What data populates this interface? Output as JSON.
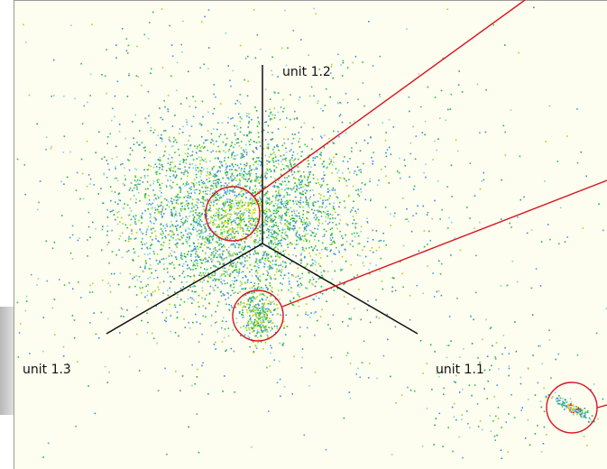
{
  "axes": [
    {
      "label": "unit 1.1"
    },
    {
      "label": "unit 1.2"
    },
    {
      "label": "unit 1.3"
    }
  ]
}
